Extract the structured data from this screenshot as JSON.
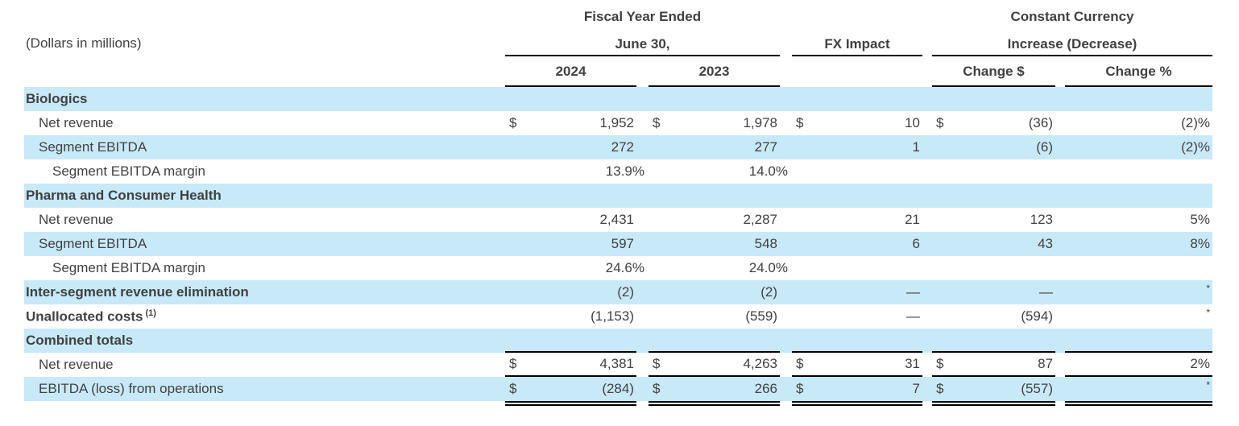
{
  "note": "(Dollars in millions)",
  "header": {
    "fiscal_year_line1": "Fiscal Year Ended",
    "fiscal_year_line2": "June 30,",
    "year_2024": "2024",
    "year_2023": "2023",
    "fx_impact": "FX Impact",
    "constant_currency_line1": "Constant Currency",
    "constant_currency_line2": "Increase (Decrease)",
    "change_dollar": "Change $",
    "change_percent": "Change %"
  },
  "colors": {
    "row_highlight": "#c8e9f8",
    "text": "#414141",
    "rule": "#000000"
  },
  "table": {
    "columns": [
      "2024",
      "2023",
      "FX Impact",
      "Change $",
      "Change %"
    ],
    "rows": [
      {
        "label": "Biologics",
        "style": "section",
        "shaded": true,
        "cells": [
          {},
          {},
          {},
          {},
          {}
        ]
      },
      {
        "label": "Net revenue",
        "style": "item",
        "shaded": false,
        "cells": [
          {
            "d": "$",
            "v": "1,952"
          },
          {
            "d": "$",
            "v": "1,978"
          },
          {
            "d": "$",
            "v": "10"
          },
          {
            "d": "$",
            "v": "(36)"
          },
          {
            "v": "(2)%"
          }
        ]
      },
      {
        "label": "Segment EBITDA",
        "style": "item",
        "shaded": true,
        "cells": [
          {
            "v": "272"
          },
          {
            "v": "277"
          },
          {
            "v": "1"
          },
          {
            "v": "(6)"
          },
          {
            "v": "(2)%"
          }
        ]
      },
      {
        "label": "Segment EBITDA margin",
        "style": "item2",
        "shaded": false,
        "cells": [
          {
            "v": "13.9%"
          },
          {
            "v": "14.0%"
          },
          {},
          {},
          {}
        ]
      },
      {
        "label": "Pharma and Consumer Health",
        "style": "section",
        "shaded": true,
        "cells": [
          {},
          {},
          {},
          {},
          {}
        ]
      },
      {
        "label": "Net revenue",
        "style": "item",
        "shaded": false,
        "cells": [
          {
            "v": "2,431"
          },
          {
            "v": "2,287"
          },
          {
            "v": "21"
          },
          {
            "v": "123"
          },
          {
            "v": "5%"
          }
        ]
      },
      {
        "label": "Segment EBITDA",
        "style": "item",
        "shaded": true,
        "cells": [
          {
            "v": "597"
          },
          {
            "v": "548"
          },
          {
            "v": "6"
          },
          {
            "v": "43"
          },
          {
            "v": "8%"
          }
        ]
      },
      {
        "label": "Segment EBITDA margin",
        "style": "item2",
        "shaded": false,
        "cells": [
          {
            "v": "24.6%"
          },
          {
            "v": "24.0%"
          },
          {},
          {},
          {}
        ]
      },
      {
        "label": "Inter-segment revenue elimination",
        "style": "section-inline",
        "shaded": true,
        "cells": [
          {
            "v": "(2)"
          },
          {
            "v": "(2)"
          },
          {
            "v": "—"
          },
          {
            "v": "—"
          },
          {
            "v": "*"
          }
        ]
      },
      {
        "label": "Unallocated costs",
        "sup": "(1)",
        "style": "section-inline",
        "shaded": false,
        "cells": [
          {
            "v": "(1,153)"
          },
          {
            "v": "(559)"
          },
          {
            "v": "—"
          },
          {
            "v": "(594)"
          },
          {
            "v": "*"
          }
        ]
      },
      {
        "label": "Combined totals",
        "style": "section",
        "shaded": true,
        "rule_bottom": true,
        "cells": [
          {},
          {},
          {},
          {},
          {}
        ]
      },
      {
        "label": "Net revenue",
        "style": "item",
        "shaded": false,
        "rule_bottom": true,
        "cells": [
          {
            "d": "$",
            "v": "4,381"
          },
          {
            "d": "$",
            "v": "4,263"
          },
          {
            "d": "$",
            "v": "31"
          },
          {
            "d": "$",
            "v": "87"
          },
          {
            "v": "2%"
          }
        ]
      },
      {
        "label": "EBITDA (loss) from operations",
        "style": "item",
        "shaded": true,
        "rule_double": true,
        "cells": [
          {
            "d": "$",
            "v": "(284)"
          },
          {
            "d": "$",
            "v": "266"
          },
          {
            "d": "$",
            "v": "7"
          },
          {
            "d": "$",
            "v": "(557)"
          },
          {
            "v": "*"
          }
        ]
      }
    ]
  }
}
